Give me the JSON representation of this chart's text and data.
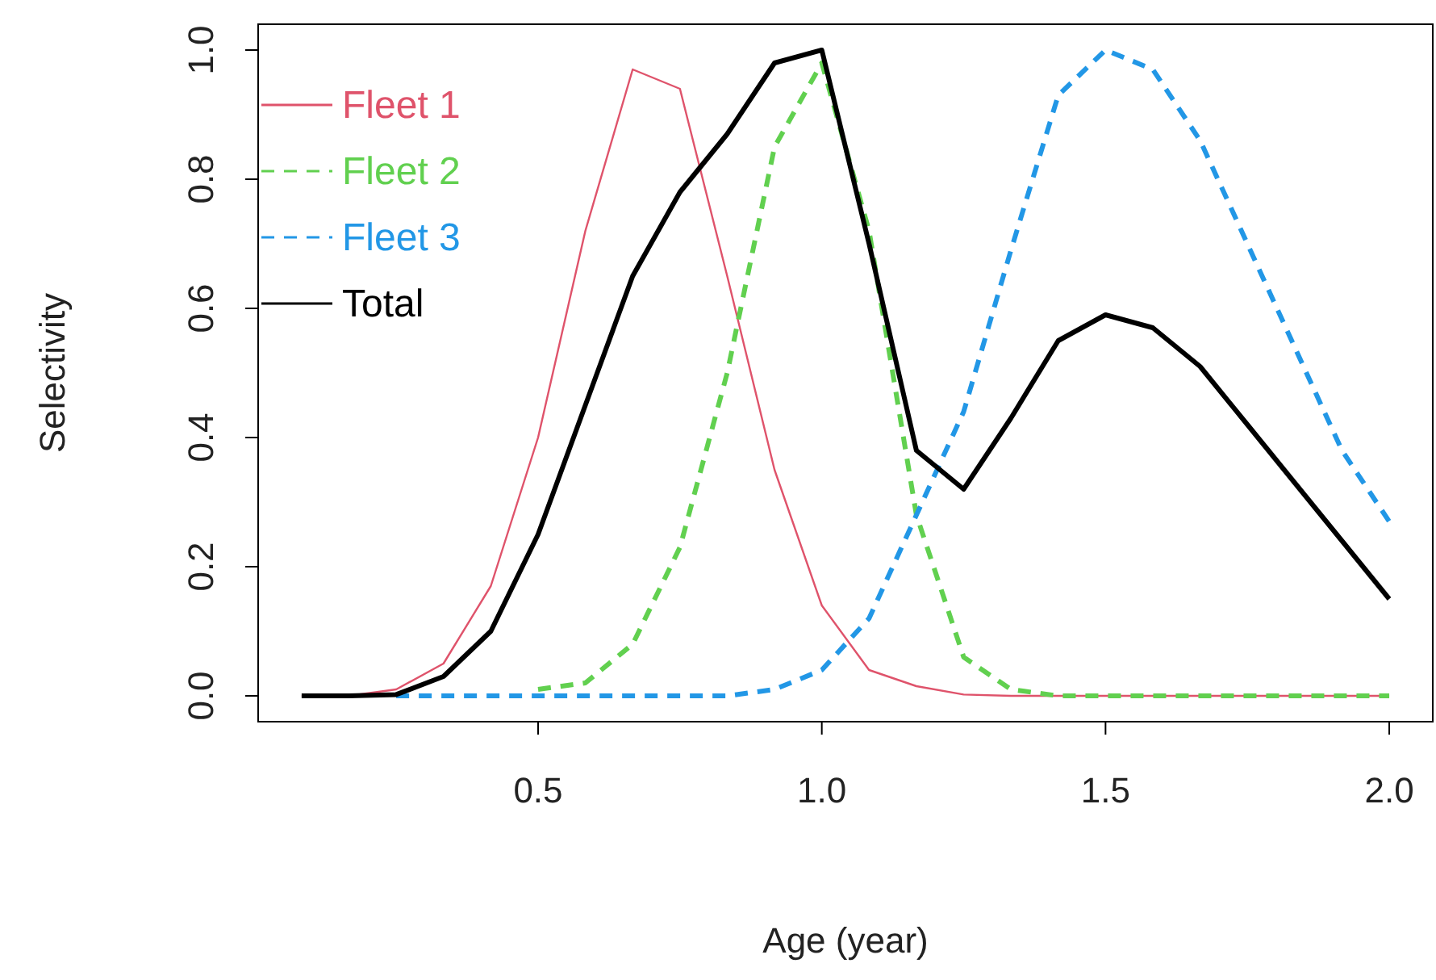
{
  "chart_data": {
    "type": "line",
    "xlabel": "Age (year)",
    "ylabel": "Selectivity",
    "x": [
      0.0833,
      0.1667,
      0.25,
      0.3333,
      0.4167,
      0.5,
      0.5833,
      0.6667,
      0.75,
      0.8333,
      0.9167,
      1.0,
      1.0833,
      1.1667,
      1.25,
      1.3333,
      1.4167,
      1.5,
      1.5833,
      1.6667,
      1.75,
      1.8333,
      1.9167,
      2.0
    ],
    "series": [
      {
        "name": "Fleet 1",
        "color": "#df536b",
        "line_style": "solid",
        "values": [
          0,
          0,
          0.01,
          0.05,
          0.17,
          0.4,
          0.72,
          0.97,
          0.94,
          0.65,
          0.35,
          0.14,
          0.04,
          0.015,
          0.002,
          0,
          0,
          0,
          0,
          0,
          0,
          0,
          0,
          0
        ]
      },
      {
        "name": "Fleet 2",
        "color": "#61d04f",
        "line_style": "dashed",
        "values": [
          null,
          null,
          null,
          null,
          null,
          0.01,
          0.02,
          0.08,
          0.23,
          0.5,
          0.85,
          0.98,
          0.72,
          0.28,
          0.06,
          0.01,
          0,
          0,
          0,
          0,
          0,
          0,
          0,
          0
        ]
      },
      {
        "name": "Fleet 3",
        "color": "#2297e6",
        "line_style": "dashed",
        "values": [
          null,
          null,
          0,
          0,
          0,
          0,
          0,
          0,
          0,
          0,
          0.01,
          0.04,
          0.12,
          0.28,
          0.44,
          0.69,
          0.93,
          1.0,
          0.97,
          0.86,
          0.7,
          0.54,
          0.38,
          0.27
        ]
      },
      {
        "name": "Total",
        "color": "#000000",
        "line_style": "solid",
        "values": [
          0,
          0,
          0.002,
          0.03,
          0.1,
          0.25,
          0.45,
          0.65,
          0.78,
          0.87,
          0.98,
          1.0,
          0.7,
          0.38,
          0.32,
          0.43,
          0.55,
          0.59,
          0.57,
          0.51,
          0.42,
          0.33,
          0.24,
          0.15
        ]
      }
    ],
    "xlim": [
      0.0067,
      2.0767
    ],
    "ylim": [
      -0.04,
      1.04
    ],
    "xticks": [
      {
        "value": 0.5,
        "label": "0.5"
      },
      {
        "value": 1.0,
        "label": "1.0"
      },
      {
        "value": 1.5,
        "label": "1.5"
      },
      {
        "value": 2.0,
        "label": "2.0"
      }
    ],
    "yticks": [
      {
        "value": 0,
        "label": "0.0"
      },
      {
        "value": 0.2,
        "label": "0.2"
      },
      {
        "value": 0.4,
        "label": "0.4"
      },
      {
        "value": 0.6,
        "label": "0.6"
      },
      {
        "value": 0.8,
        "label": "0.8"
      },
      {
        "value": 1.0,
        "label": "1.0"
      }
    ],
    "legend": "top left",
    "grid": false
  }
}
